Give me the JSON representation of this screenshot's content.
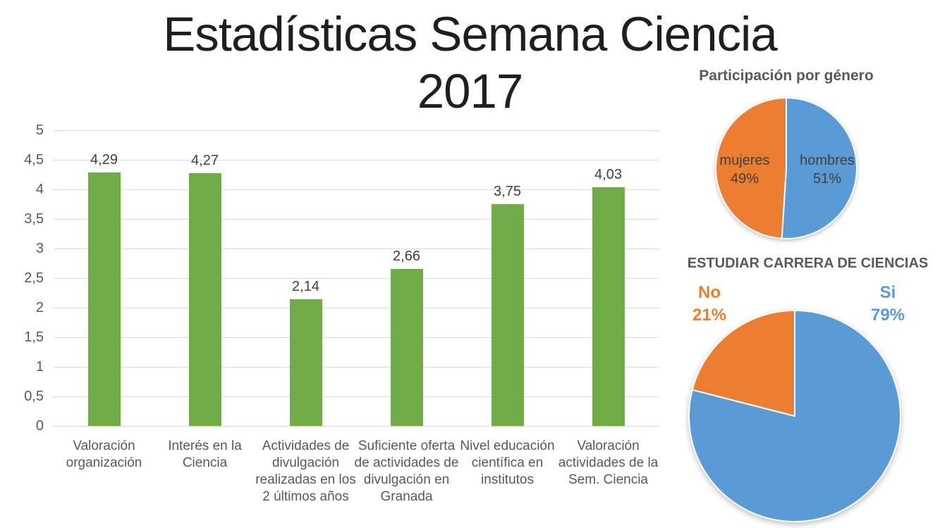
{
  "title": {
    "line1": "Estadísticas Semana Ciencia",
    "line2": "2017",
    "full": "Estadísticas Semana Ciencia 2017"
  },
  "colors": {
    "bar_green": "#70AD47",
    "pie_blue": "#5B9BD5",
    "pie_orange": "#ED7D31",
    "gridline": "#D9D9D9",
    "axis_text": "#595959",
    "value_text": "#404040",
    "title_text": "#1F1F1F"
  },
  "chart_data": [
    {
      "type": "bar",
      "title": "",
      "categories": [
        "Valoración organización",
        "Interés en la Ciencia",
        "Actividades de divulgación realizadas en los 2 últimos años",
        "Suficiente oferta de actividades de divulgación en Granada",
        "Nivel educación científica en institutos",
        "Valoración actividades de la Sem. Ciencia"
      ],
      "values": [
        4.29,
        4.27,
        2.14,
        2.66,
        3.75,
        4.03
      ],
      "value_labels": [
        "4,29",
        "4,27",
        "2,14",
        "2,66",
        "3,75",
        "4,03"
      ],
      "xlabel": "",
      "ylabel": "",
      "ylim": [
        0,
        5
      ],
      "ytick_step": 0.5,
      "ytick_labels": [
        "0",
        "0,5",
        "1",
        "1,5",
        "2",
        "2,5",
        "3",
        "3,5",
        "4",
        "4,5",
        "5"
      ],
      "grid": true,
      "legend": false,
      "bar_color": "#70AD47"
    },
    {
      "type": "pie",
      "title": "Participación por género",
      "slices": [
        {
          "label": "hombres",
          "pct": 51,
          "pct_label": "51%",
          "color": "#5B9BD5"
        },
        {
          "label": "mujeres",
          "pct": 49,
          "pct_label": "49%",
          "color": "#ED7D31"
        }
      ],
      "start_angle_deg": 0,
      "direction": "clockwise",
      "label_style": "inside"
    },
    {
      "type": "pie",
      "title": "ESTUDIAR CARRERA DE CIENCIAS",
      "slices": [
        {
          "label": "Si",
          "pct": 79,
          "pct_label": "79%",
          "color": "#5B9BD5"
        },
        {
          "label": "No",
          "pct": 21,
          "pct_label": "21%",
          "color": "#ED7D31"
        }
      ],
      "start_angle_deg": 0,
      "direction": "clockwise",
      "label_style": "outside"
    }
  ]
}
